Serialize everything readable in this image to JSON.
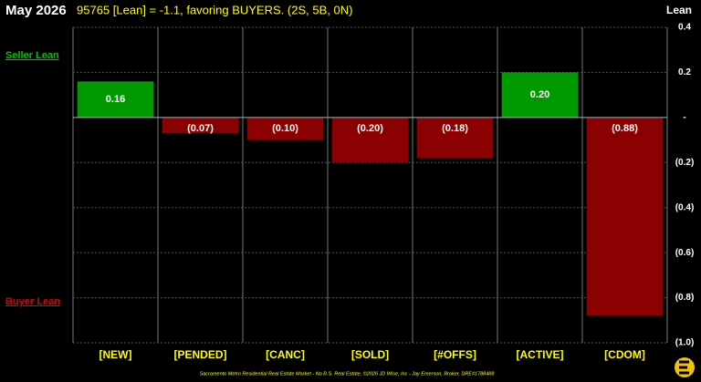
{
  "chart_data": {
    "type": "bar",
    "title": "May 2026",
    "subtitle": "95765 [Lean] = -1.1, favoring BUYERS. (2S, 5B, 0N)",
    "y_label": "Lean",
    "annotations": [
      "Seller Lean",
      "Buyer Lean"
    ],
    "footer": "Sacramento Metro Residential Real Estate Market - No B.S. Real Estate, ©2026 JD Wise, Inc - Jay Emerson, Broker, DRE#1788488",
    "categories": [
      "[NEW]",
      "[PENDED]",
      "[CANC]",
      "[SOLD]",
      "[#OFFS]",
      "[ACTIVE]",
      "[CDOM]"
    ],
    "values": [
      0.16,
      -0.07,
      -0.1,
      -0.2,
      -0.18,
      0.2,
      -0.88
    ],
    "value_labels": [
      "0.16",
      "(0.07)",
      "(0.10)",
      "(0.20)",
      "(0.18)",
      "0.20",
      "(0.88)"
    ],
    "colors": [
      "#009a00",
      "#8b0000",
      "#8b0000",
      "#8b0000",
      "#8b0000",
      "#009a00",
      "#8b0000"
    ],
    "ylim": [
      -1.0,
      0.4
    ],
    "yticks": [
      0.4,
      0.2,
      {
        "value": 0,
        "label": "-"
      },
      {
        "value": -0.2,
        "label": "(0.2)"
      },
      {
        "value": -0.4,
        "label": "(0.4)"
      },
      {
        "value": -0.6,
        "label": "(0.6)"
      },
      {
        "value": -0.8,
        "label": "(0.8)"
      },
      {
        "value": -1.0,
        "label": "(1.0)"
      }
    ],
    "grid": true
  }
}
